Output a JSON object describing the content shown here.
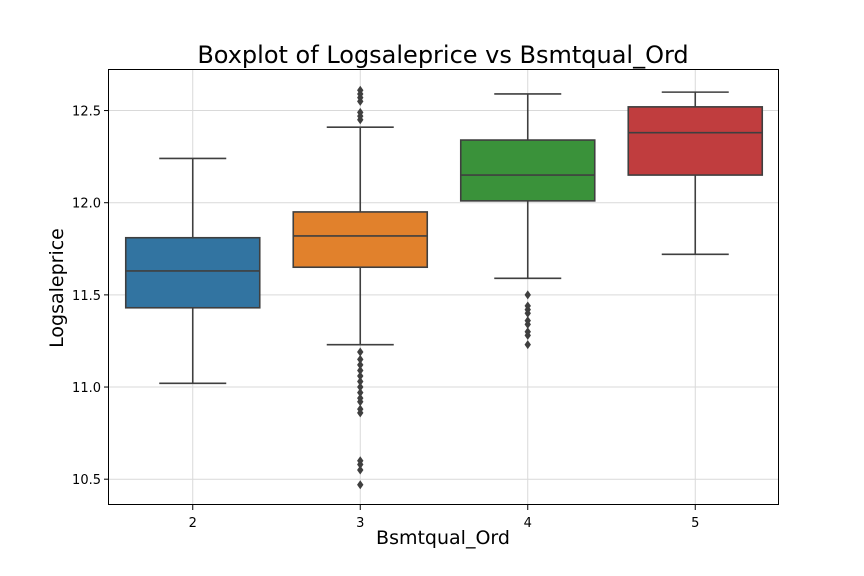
{
  "chart_data": {
    "type": "boxplot",
    "title": "Boxplot of Logsaleprice vs Bsmtqual_Ord",
    "xlabel": "Bsmtqual_Ord",
    "ylabel": "Logsaleprice",
    "categories": [
      "2",
      "3",
      "4",
      "5"
    ],
    "ylim": [
      10.36,
      12.72
    ],
    "yticks": [
      10.5,
      11.0,
      11.5,
      12.0,
      12.5
    ],
    "ytick_labels": [
      "10.5",
      "11.0",
      "11.5",
      "12.0",
      "12.5"
    ],
    "grid": true,
    "colors": [
      "#3274a1",
      "#e1812c",
      "#3a923a",
      "#c03d3e"
    ],
    "boxes": [
      {
        "category": "2",
        "whisker_low": 11.02,
        "q1": 11.43,
        "median": 11.63,
        "q3": 11.81,
        "whisker_high": 12.24,
        "outliers": []
      },
      {
        "category": "3",
        "whisker_low": 11.23,
        "q1": 11.65,
        "median": 11.82,
        "q3": 11.95,
        "whisker_high": 12.41,
        "outliers": [
          10.47,
          10.55,
          10.58,
          10.6,
          10.86,
          10.88,
          10.92,
          10.94,
          10.97,
          11.0,
          11.03,
          11.06,
          11.09,
          11.12,
          11.15,
          11.19,
          12.45,
          12.47,
          12.49,
          12.55,
          12.57,
          12.59,
          12.61
        ]
      },
      {
        "category": "4",
        "whisker_low": 11.59,
        "q1": 12.01,
        "median": 12.15,
        "q3": 12.34,
        "whisker_high": 12.59,
        "outliers": [
          11.23,
          11.28,
          11.3,
          11.34,
          11.36,
          11.4,
          11.42,
          11.44,
          11.5
        ]
      },
      {
        "category": "5",
        "whisker_low": 11.72,
        "q1": 12.15,
        "median": 12.38,
        "q3": 12.52,
        "whisker_high": 12.6,
        "outliers": []
      }
    ]
  }
}
